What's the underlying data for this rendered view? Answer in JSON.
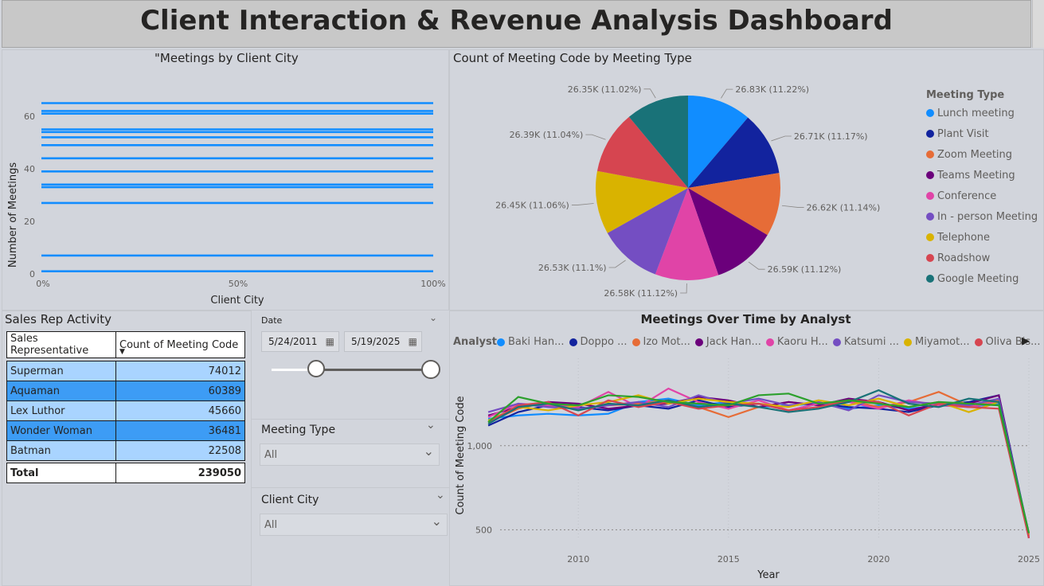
{
  "title": "Client Interaction & Revenue Analysis Dashboard",
  "meetings_by_city": {
    "title": "\"Meetings by Client City",
    "ylabel": "Number of Meetings",
    "xlabel": "Client City",
    "y_ticks": [
      "0",
      "20",
      "40",
      "60"
    ],
    "x_ticks": [
      "0%",
      "50%",
      "100%"
    ]
  },
  "pie": {
    "title": "Count of Meeting Code by Meeting Type",
    "legend_title": "Meeting Type"
  },
  "sales_rep": {
    "title": "Sales Rep Activity",
    "col1": "Sales Representative",
    "col2": "Count of Meeting Code",
    "rows": [
      {
        "name": "Superman",
        "count": "74012"
      },
      {
        "name": "Aquaman",
        "count": "60389"
      },
      {
        "name": "Lex Luthor",
        "count": "45660"
      },
      {
        "name": "Wonder Woman",
        "count": "36481"
      },
      {
        "name": "Batman",
        "count": "22508"
      }
    ],
    "total_label": "Total",
    "total_value": "239050"
  },
  "slicers": {
    "date_label": "Date",
    "date_start": "5/24/2011",
    "date_end": "5/19/2025",
    "meeting_type_label": "Meeting Type",
    "meeting_type_value": "All",
    "client_city_label": "Client City",
    "client_city_value": "All"
  },
  "line": {
    "title": "Meetings Over Time by Analyst",
    "legend_title": "Analyst",
    "ylabel": "Count of Meeting Code",
    "xlabel": "Year"
  },
  "colors": {
    "accent_blue": "#118dff",
    "row_light": "#a9d4ff",
    "row_dark": "#3d9cf5"
  },
  "chart_data": [
    {
      "type": "bar",
      "title": "\"Meetings by Client City",
      "xlabel": "Client City",
      "ylabel": "Number of Meetings",
      "ylim": [
        0,
        67
      ],
      "x_ticks": [
        "0%",
        "50%",
        "100%"
      ],
      "values": [
        65,
        62,
        61,
        55,
        54,
        52,
        49,
        44,
        39,
        34,
        33,
        27,
        7,
        1
      ],
      "grid": false
    },
    {
      "type": "pie",
      "title": "Count of Meeting Code by Meeting Type",
      "legend_title": "Meeting Type",
      "slices": [
        {
          "name": "Lunch meeting",
          "value": 26830,
          "label": "26.83K (11.22%)",
          "color": "#118dff"
        },
        {
          "name": "Plant Visit",
          "value": 26710,
          "label": "26.71K (11.17%)",
          "color": "#12239e"
        },
        {
          "name": "Zoom Meeting",
          "value": 26620,
          "label": "26.62K (11.14%)",
          "color": "#e66c37"
        },
        {
          "name": "Teams Meeting",
          "value": 26590,
          "label": "26.59K (11.12%)",
          "color": "#6b007b"
        },
        {
          "name": "Conference",
          "value": 26580,
          "label": "26.58K (11.12%)",
          "color": "#e044a7"
        },
        {
          "name": "In - person Meeting",
          "value": 26530,
          "label": "26.53K (11.1%)",
          "color": "#744ec2"
        },
        {
          "name": "Telephone",
          "value": 26450,
          "label": "26.45K (11.06%)",
          "color": "#d9b300"
        },
        {
          "name": "Roadshow",
          "value": 26390,
          "label": "26.39K (11.04%)",
          "color": "#d64550"
        },
        {
          "name": "Google Meeting",
          "value": 26350,
          "label": "26.35K (11.02%)",
          "color": "#197278"
        }
      ]
    },
    {
      "type": "line",
      "title": "Meetings Over Time by Analyst",
      "xlabel": "Year",
      "ylabel": "Count of Meeting Code",
      "x_ticks": [
        "2010",
        "2015",
        "2020",
        "2025"
      ],
      "y_ticks": [
        "500",
        "1,000"
      ],
      "xlim": [
        2006.6,
        2025
      ],
      "ylim": [
        440,
        1520
      ],
      "x": [
        2007,
        2008,
        2009,
        2010,
        2011,
        2012,
        2013,
        2014,
        2015,
        2016,
        2017,
        2018,
        2019,
        2020,
        2021,
        2022,
        2023,
        2024,
        2025
      ],
      "series": [
        {
          "name": "Baki Han...",
          "color": "#118dff",
          "values": [
            1160,
            1180,
            1190,
            1180,
            1190,
            1260,
            1280,
            1240,
            1260,
            1230,
            1240,
            1250,
            1220,
            1240,
            1220,
            1240,
            1230,
            1250,
            460
          ]
        },
        {
          "name": "Doppo ...",
          "color": "#12239e",
          "values": [
            1120,
            1200,
            1240,
            1230,
            1210,
            1240,
            1220,
            1270,
            1230,
            1250,
            1210,
            1250,
            1230,
            1220,
            1200,
            1240,
            1260,
            1300,
            470
          ]
        },
        {
          "name": "Izo Mot...",
          "color": "#e66c37",
          "values": [
            1140,
            1220,
            1260,
            1220,
            1240,
            1250,
            1270,
            1230,
            1170,
            1230,
            1260,
            1240,
            1270,
            1230,
            1260,
            1320,
            1240,
            1270,
            460
          ]
        },
        {
          "name": "Jack Han...",
          "color": "#6b007b",
          "values": [
            1180,
            1230,
            1260,
            1250,
            1220,
            1240,
            1250,
            1290,
            1270,
            1230,
            1260,
            1240,
            1280,
            1260,
            1210,
            1250,
            1250,
            1300,
            450
          ]
        },
        {
          "name": "Kaoru H...",
          "color": "#e044a7",
          "values": [
            1170,
            1250,
            1240,
            1230,
            1320,
            1230,
            1340,
            1260,
            1220,
            1270,
            1210,
            1250,
            1260,
            1220,
            1270,
            1240,
            1230,
            1260,
            460
          ]
        },
        {
          "name": "Katsumi ...",
          "color": "#744ec2",
          "values": [
            1200,
            1250,
            1230,
            1220,
            1240,
            1260,
            1230,
            1300,
            1250,
            1280,
            1240,
            1260,
            1210,
            1300,
            1260,
            1250,
            1240,
            1280,
            470
          ]
        },
        {
          "name": "Miyamot...",
          "color": "#d9b300",
          "values": [
            1150,
            1230,
            1210,
            1240,
            1260,
            1300,
            1250,
            1280,
            1260,
            1250,
            1230,
            1270,
            1240,
            1280,
            1230,
            1260,
            1200,
            1260,
            470
          ]
        },
        {
          "name": "Oliva Bis...",
          "color": "#d64550",
          "values": [
            1140,
            1240,
            1260,
            1180,
            1270,
            1230,
            1260,
            1220,
            1240,
            1250,
            1210,
            1230,
            1270,
            1260,
            1180,
            1250,
            1230,
            1220,
            450
          ]
        },
        {
          "name": "",
          "color": "#197278",
          "values": [
            1130,
            1230,
            1250,
            1210,
            1250,
            1240,
            1270,
            1230,
            1250,
            1230,
            1200,
            1220,
            1260,
            1330,
            1250,
            1230,
            1280,
            1260,
            480
          ]
        },
        {
          "name": "",
          "color": "#2ca02c",
          "values": [
            1140,
            1290,
            1250,
            1240,
            1300,
            1290,
            1260,
            1250,
            1240,
            1300,
            1310,
            1250,
            1270,
            1250,
            1230,
            1260,
            1250,
            1240,
            480
          ]
        }
      ]
    }
  ]
}
